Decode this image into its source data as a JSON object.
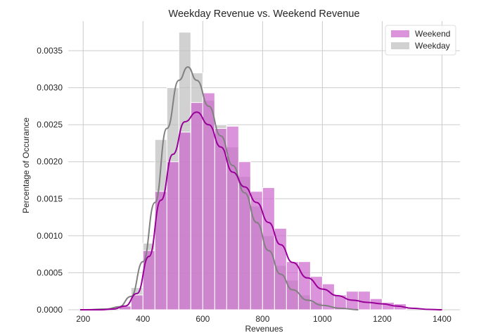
{
  "chart_data": {
    "type": "bar",
    "title": "Weekday Revenue vs. Weekend Revenue",
    "xlabel": "Revenues",
    "ylabel": "Percentage of Occurance",
    "xlim": [
      150,
      1460
    ],
    "ylim": [
      0,
      0.0039
    ],
    "x_ticks": [
      200,
      400,
      600,
      800,
      1000,
      1200,
      1400
    ],
    "y_ticks": [
      0.0,
      0.0005,
      0.001,
      0.0015,
      0.002,
      0.0025,
      0.003,
      0.0035
    ],
    "x_tick_labels": [
      "200",
      "400",
      "600",
      "800",
      "1000",
      "1200",
      "1400"
    ],
    "y_tick_labels": [
      "0.0000",
      "0.0005",
      "0.0010",
      "0.0015",
      "0.0020",
      "0.0025",
      "0.0030",
      "0.0035"
    ],
    "grid": true,
    "legend_position": "top-right",
    "series": [
      {
        "name": "Weekend",
        "color": "#cc66cc",
        "line_color": "#990099",
        "hist_bins": [
          [
            320,
            360,
            5e-05
          ],
          [
            360,
            400,
            0.0002
          ],
          [
            400,
            440,
            0.0008
          ],
          [
            440,
            480,
            0.0016
          ],
          [
            480,
            520,
            0.002
          ],
          [
            520,
            560,
            0.0024
          ],
          [
            560,
            600,
            0.0028
          ],
          [
            600,
            640,
            0.00293
          ],
          [
            640,
            680,
            0.00245
          ],
          [
            680,
            720,
            0.00248
          ],
          [
            720,
            760,
            0.002
          ],
          [
            760,
            800,
            0.0016
          ],
          [
            800,
            840,
            0.00165
          ],
          [
            840,
            880,
            0.0011
          ],
          [
            880,
            920,
            0.00065
          ],
          [
            920,
            960,
            0.00065
          ],
          [
            960,
            1000,
            0.00045
          ],
          [
            1000,
            1040,
            0.00035
          ],
          [
            1040,
            1080,
            0.0002
          ],
          [
            1080,
            1120,
            0.00025
          ],
          [
            1120,
            1160,
            0.00025
          ],
          [
            1160,
            1200,
            0.00015
          ],
          [
            1200,
            1240,
            0.0001
          ],
          [
            1240,
            1280,
            8e-05
          ]
        ],
        "kde": [
          [
            190,
            0.0
          ],
          [
            260,
            0.0
          ],
          [
            300,
            1e-05
          ],
          [
            340,
            5e-05
          ],
          [
            380,
            0.00022
          ],
          [
            420,
            0.00072
          ],
          [
            460,
            0.00148
          ],
          [
            500,
            0.0021
          ],
          [
            540,
            0.00254
          ],
          [
            580,
            0.00267
          ],
          [
            620,
            0.0025
          ],
          [
            660,
            0.0022
          ],
          [
            700,
            0.00186
          ],
          [
            740,
            0.00166
          ],
          [
            780,
            0.00145
          ],
          [
            820,
            0.00118
          ],
          [
            860,
            0.00088
          ],
          [
            900,
            0.00064
          ],
          [
            950,
            0.00043
          ],
          [
            1000,
            0.00028
          ],
          [
            1050,
            0.00019
          ],
          [
            1100,
            0.00013
          ],
          [
            1150,
            0.0001
          ],
          [
            1200,
            8e-05
          ],
          [
            1250,
            5e-05
          ],
          [
            1300,
            2e-05
          ],
          [
            1360,
            5e-06
          ],
          [
            1400,
            0.0
          ]
        ]
      },
      {
        "name": "Weekday",
        "color": "#bdbdbd",
        "line_color": "#808080",
        "hist_bins": [
          [
            320,
            360,
            4e-05
          ],
          [
            360,
            400,
            0.0003
          ],
          [
            400,
            440,
            0.0009
          ],
          [
            440,
            480,
            0.0023
          ],
          [
            480,
            520,
            0.003
          ],
          [
            520,
            560,
            0.00375
          ],
          [
            560,
            600,
            0.0032
          ],
          [
            600,
            640,
            0.00283
          ],
          [
            640,
            680,
            0.0025
          ],
          [
            680,
            720,
            0.0022
          ],
          [
            720,
            760,
            0.0018
          ],
          [
            760,
            800,
            0.0014
          ],
          [
            800,
            840,
            0.001
          ],
          [
            840,
            880,
            0.0006
          ],
          [
            880,
            920,
            0.0004
          ],
          [
            920,
            960,
            0.0002
          ],
          [
            960,
            1000,
            0.0001
          ]
        ],
        "kde": [
          [
            200,
            0.0
          ],
          [
            280,
            1e-05
          ],
          [
            320,
            4e-05
          ],
          [
            360,
            0.00018
          ],
          [
            400,
            0.00065
          ],
          [
            440,
            0.00145
          ],
          [
            480,
            0.00245
          ],
          [
            520,
            0.0031
          ],
          [
            550,
            0.00328
          ],
          [
            580,
            0.0031
          ],
          [
            620,
            0.00275
          ],
          [
            660,
            0.00235
          ],
          [
            700,
            0.00195
          ],
          [
            740,
            0.00158
          ],
          [
            780,
            0.00118
          ],
          [
            820,
            0.0008
          ],
          [
            860,
            0.00048
          ],
          [
            900,
            0.00027
          ],
          [
            950,
            0.00013
          ],
          [
            1000,
            6e-05
          ],
          [
            1060,
            2e-05
          ],
          [
            1120,
            0.0
          ]
        ]
      }
    ]
  }
}
